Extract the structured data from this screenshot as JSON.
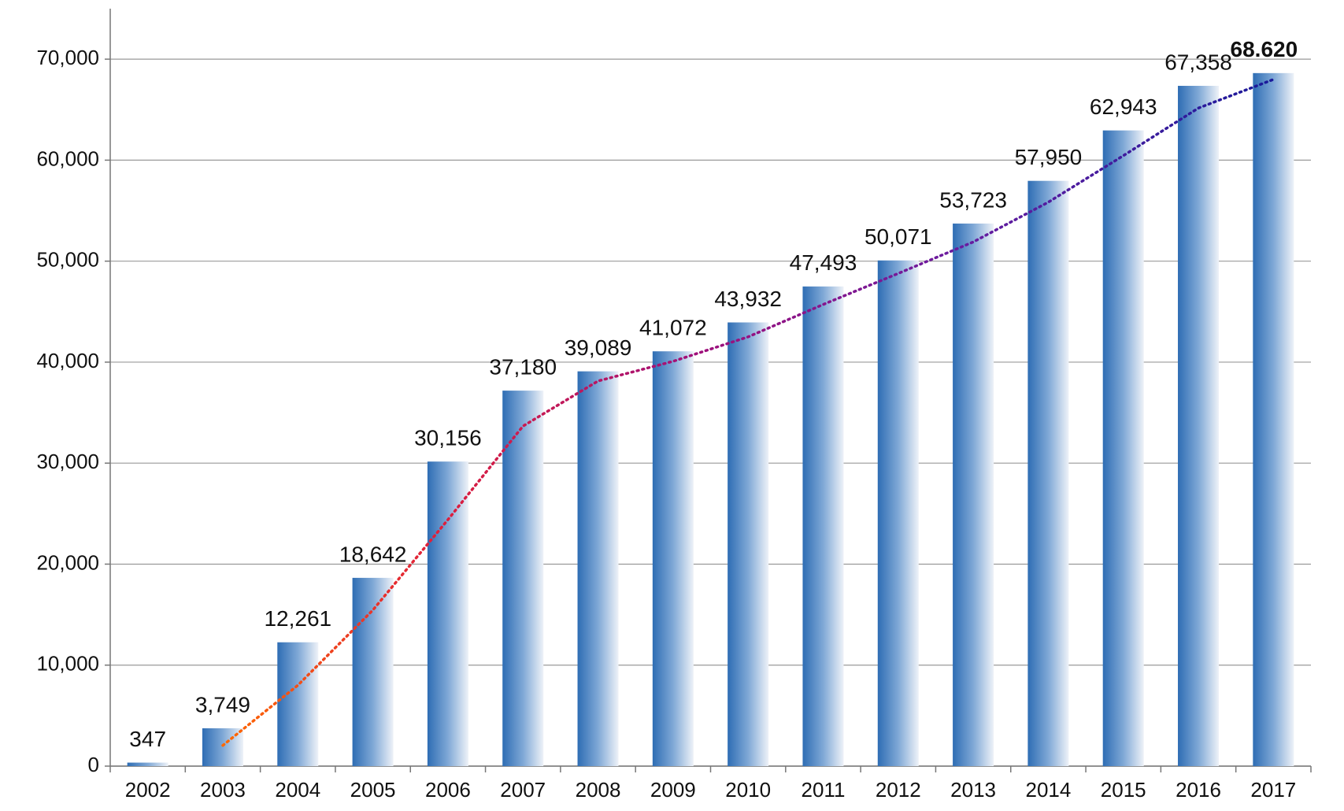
{
  "chart_data": {
    "type": "bar",
    "categories": [
      "2002",
      "2003",
      "2004",
      "2005",
      "2006",
      "2007",
      "2008",
      "2009",
      "2010",
      "2011",
      "2012",
      "2013",
      "2014",
      "2015",
      "2016",
      "2017"
    ],
    "values": [
      347,
      3749,
      12261,
      18642,
      30156,
      37180,
      39089,
      41072,
      43932,
      47493,
      50071,
      53723,
      57950,
      62943,
      67358,
      68620
    ],
    "value_labels": [
      "347",
      "3,749",
      "12,261",
      "18,642",
      "30,156",
      "37,180",
      "39,089",
      "41,072",
      "43,932",
      "47,493",
      "50,071",
      "53,723",
      "57,950",
      "62,943",
      "67,358",
      "68.620"
    ],
    "trend_values": [
      null,
      2048,
      8005,
      15451.5,
      24399,
      33668,
      38134.5,
      40080.5,
      42502,
      45712.5,
      48782,
      51897,
      55836.5,
      60446.5,
      65150.5,
      67989
    ],
    "color": "#2e6db4",
    "ylim": [
      0,
      75000
    ],
    "yticks": [
      0,
      {
        "value": 10000,
        "label": "10,000"
      },
      {
        "value": 20000,
        "label": "20,000"
      },
      {
        "value": 30000,
        "label": "30,000"
      },
      {
        "value": 40000,
        "label": "40,000"
      },
      {
        "value": 50000,
        "label": "50,000"
      },
      {
        "value": 60000,
        "label": "60,000"
      },
      {
        "value": 70000,
        "label": "70,000"
      }
    ],
    "grid": true
  }
}
